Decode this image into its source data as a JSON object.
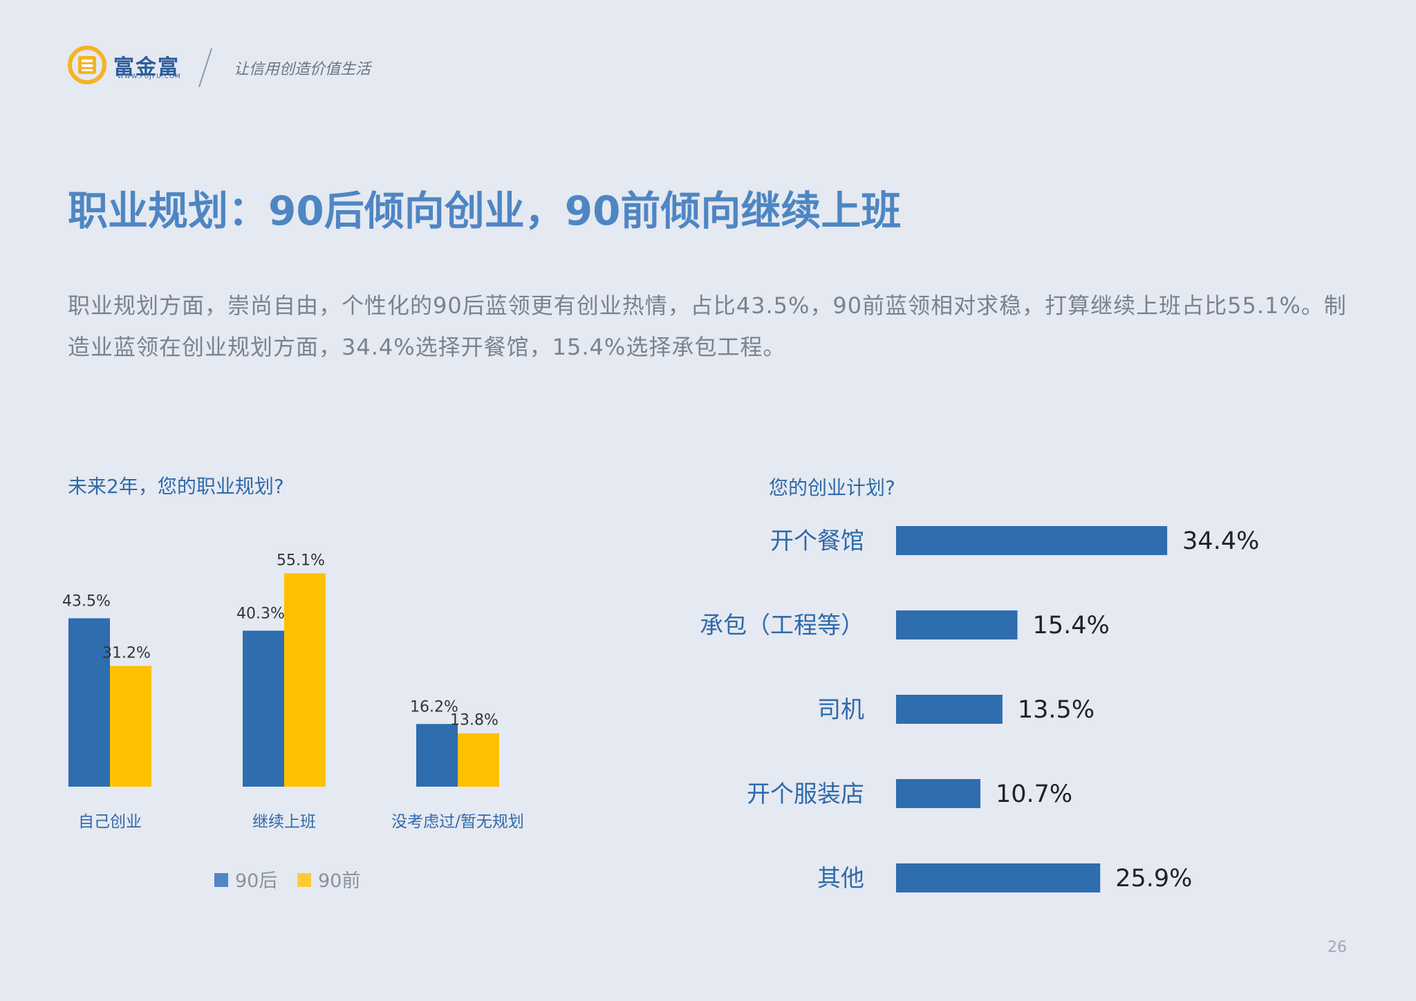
{
  "header": {
    "brand_name": "富金富",
    "brand_url": "WWW.FUJFU.COM",
    "slogan": "让信用创造价值生活"
  },
  "title": "职业规划：90后倾向创业，90前倾向继续上班",
  "intro": "职业规划方面，崇尚自由，个性化的90后蓝领更有创业热情，占比43.5%，90前蓝领相对求稳，打算继续上班占比55.1%。制造业蓝领在创业规划方面，34.4%选择开餐馆，15.4%选择承包工程。",
  "colors": {
    "post90": "#2E6DAE",
    "pre90": "#FFC000",
    "bar": "#2E6DAE",
    "label_blue": "#2F6AAA",
    "title": "#4E86C3"
  },
  "chart_data": [
    {
      "type": "bar",
      "title": "未来2年，您的职业规划?",
      "categories": [
        "自己创业",
        "继续上班",
        "没考虑过/暂无规划"
      ],
      "series": [
        {
          "name": "90后",
          "values": [
            43.5,
            40.3,
            16.2
          ],
          "labels": [
            "43.5%",
            "40.3%",
            "16.2%"
          ]
        },
        {
          "name": "90前",
          "values": [
            31.2,
            55.1,
            13.8
          ],
          "labels": [
            "31.2%",
            "55.1%",
            "13.8%"
          ]
        }
      ],
      "legend_position": "bottom",
      "grid": false
    },
    {
      "type": "bar",
      "orientation": "horizontal",
      "title": "您的创业计划?",
      "categories": [
        "开个餐馆",
        "承包（工程等）",
        "司机",
        "开个服装店",
        "其他"
      ],
      "values": [
        34.4,
        15.4,
        13.5,
        10.7,
        25.9
      ],
      "labels": [
        "34.4%",
        "15.4%",
        "13.5%",
        "10.7%",
        "25.9%"
      ],
      "grid": false
    }
  ],
  "page_number": "26"
}
